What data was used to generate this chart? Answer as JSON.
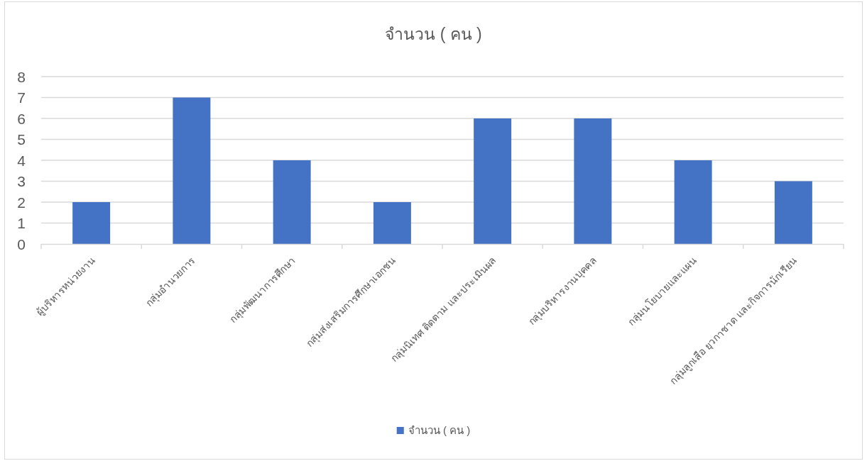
{
  "chart_data": {
    "type": "bar",
    "title": "จำนวน ( คน )",
    "categories": [
      "ผู้บริหารหน่วยงาน",
      "กลุ่มอำนวยการ",
      "กลุ่มพัฒนาการศึกษา",
      "กลุ่มส่งเสริมการศึกษาเอกชน",
      "กลุ่มนิเทศ ติดตาม และประเมินผล",
      "กลุ่มบริหารงานบุคคล",
      "กลุ่มนโยบายและแผน",
      "กลุ่มลูกเสือ ยุวกาชาด และกิจการนักเรียน"
    ],
    "series": [
      {
        "name": "จำนวน ( คน )",
        "color": "#4472c4",
        "values": [
          2,
          7,
          4,
          2,
          6,
          6,
          4,
          3
        ]
      }
    ],
    "ylim": [
      0,
      8
    ],
    "yticks": [
      0,
      1,
      2,
      3,
      4,
      5,
      6,
      7,
      8
    ],
    "grid": "y",
    "legend": "bottom"
  }
}
